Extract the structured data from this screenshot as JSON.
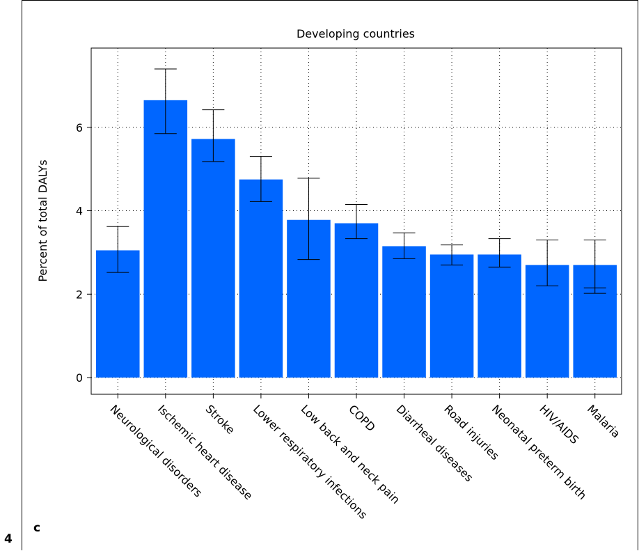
{
  "page_number": "4",
  "panel_label": "c",
  "colors": {
    "bar": "#0066ff",
    "grid": "#000000",
    "axis": "#000000"
  },
  "chart_data": {
    "type": "bar",
    "title": "Developing countries",
    "xlabel": "",
    "ylabel": "Percent of total DALYs",
    "categories": [
      "Neurological disorders",
      "Ischemic heart disease",
      "Stroke",
      "Lower respiratory infections",
      "Low back and neck pain",
      "COPD",
      "Diarrheal diseases",
      "Road injuries",
      "Neonatal preterm birth",
      "HIV/AIDS",
      "Malaria"
    ],
    "values": [
      3.05,
      6.65,
      5.72,
      4.75,
      3.78,
      3.7,
      3.15,
      2.95,
      2.95,
      2.7,
      2.7
    ],
    "error_low": [
      2.52,
      5.85,
      5.18,
      4.22,
      2.83,
      3.33,
      2.85,
      2.7,
      2.65,
      2.2,
      2.02
    ],
    "error_high": [
      3.62,
      7.4,
      6.42,
      5.3,
      4.78,
      4.15,
      3.47,
      3.18,
      3.33,
      3.3,
      3.3
    ],
    "extra_lower_tick": [
      null,
      null,
      null,
      null,
      null,
      null,
      null,
      null,
      null,
      null,
      2.15
    ],
    "ylim": [
      -0.4,
      7.9
    ],
    "yticks": [
      0,
      2,
      4,
      6
    ],
    "grid": true,
    "legend": "none"
  }
}
